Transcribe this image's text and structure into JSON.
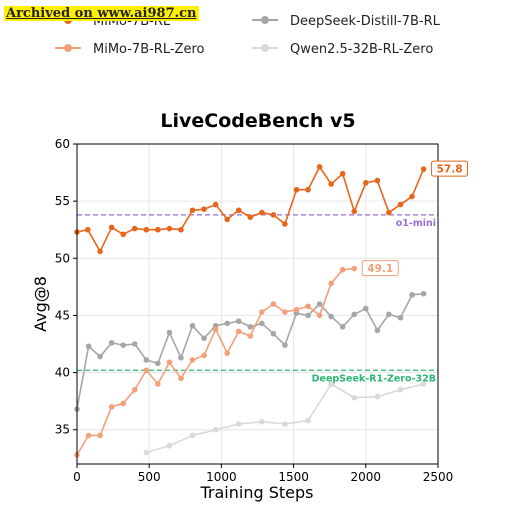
{
  "watermark": "Archived on www.ai987.cn",
  "chart_data": {
    "type": "line",
    "title": "LiveCodeBench v5",
    "xlabel": "Training Steps",
    "ylabel": "Avg@8",
    "xlim": [
      0,
      2500
    ],
    "ylim": [
      32,
      60
    ],
    "xticks": [
      0,
      500,
      1000,
      1500,
      2000,
      2500
    ],
    "yticks": [
      35,
      40,
      45,
      50,
      55,
      60
    ],
    "grid": true,
    "legend_position": "top",
    "series": [
      {
        "name": "MiMo-7B-RL",
        "color": "#e8651a",
        "marker": true,
        "final_label": "57.8",
        "x": [
          0,
          75,
          160,
          240,
          320,
          400,
          480,
          560,
          640,
          720,
          800,
          880,
          960,
          1040,
          1120,
          1200,
          1280,
          1360,
          1440,
          1520,
          1600,
          1680,
          1760,
          1840,
          1920,
          2000,
          2080,
          2160,
          2240,
          2320,
          2400
        ],
        "values": [
          52.3,
          52.5,
          50.6,
          52.7,
          52.1,
          52.6,
          52.5,
          52.5,
          52.6,
          52.5,
          54.2,
          54.3,
          54.7,
          53.4,
          54.2,
          53.6,
          54.0,
          53.8,
          53.0,
          56.0,
          56.0,
          58.0,
          56.5,
          57.4,
          54.1,
          56.6,
          56.8,
          54.0,
          54.7,
          55.4,
          57.8
        ]
      },
      {
        "name": "MiMo-7B-RL-Zero",
        "color": "#f2a07a",
        "marker": true,
        "final_label": "49.1",
        "x": [
          0,
          80,
          160,
          240,
          320,
          400,
          480,
          560,
          640,
          720,
          800,
          880,
          960,
          1040,
          1120,
          1200,
          1280,
          1360,
          1440,
          1520,
          1600,
          1680,
          1760,
          1840,
          1920
        ],
        "values": [
          32.8,
          34.5,
          34.5,
          37.0,
          37.3,
          38.5,
          40.2,
          39.0,
          40.9,
          39.5,
          41.1,
          41.5,
          43.8,
          41.7,
          43.6,
          43.2,
          45.3,
          46.0,
          45.3,
          45.5,
          45.8,
          45.0,
          47.8,
          49.0,
          49.1
        ]
      },
      {
        "name": "DeepSeek-Distill-7B-RL",
        "color": "#a6a6a6",
        "marker": true,
        "x": [
          0,
          80,
          160,
          240,
          320,
          400,
          480,
          560,
          640,
          720,
          800,
          880,
          960,
          1040,
          1120,
          1200,
          1280,
          1360,
          1440,
          1520,
          1600,
          1680,
          1760,
          1840,
          1920,
          2000,
          2080,
          2160,
          2240,
          2320,
          2400
        ],
        "values": [
          36.8,
          42.3,
          41.4,
          42.6,
          42.4,
          42.5,
          41.1,
          40.8,
          43.5,
          41.3,
          44.1,
          43.0,
          44.1,
          44.3,
          44.5,
          44.0,
          44.3,
          43.4,
          42.4,
          45.2,
          45.0,
          46.0,
          44.9,
          44.0,
          45.1,
          45.6,
          43.7,
          45.1,
          44.8,
          46.8,
          46.9
        ]
      },
      {
        "name": "Qwen2.5-32B-RL-Zero",
        "color": "#d9d9d9",
        "marker": true,
        "x": [
          480,
          640,
          800,
          960,
          1120,
          1280,
          1440,
          1600,
          1760,
          1920,
          2080,
          2240,
          2400
        ],
        "values": [
          33.0,
          33.6,
          34.5,
          35.0,
          35.5,
          35.7,
          35.5,
          35.8,
          39.0,
          37.8,
          37.9,
          38.5,
          39.0
        ]
      }
    ],
    "reference_lines": [
      {
        "label": "o1-mini",
        "value": 53.8,
        "color": "#9a6fd6"
      },
      {
        "label": "DeepSeek-R1-Zero-32B",
        "value": 40.2,
        "color": "#2bb673"
      }
    ]
  }
}
